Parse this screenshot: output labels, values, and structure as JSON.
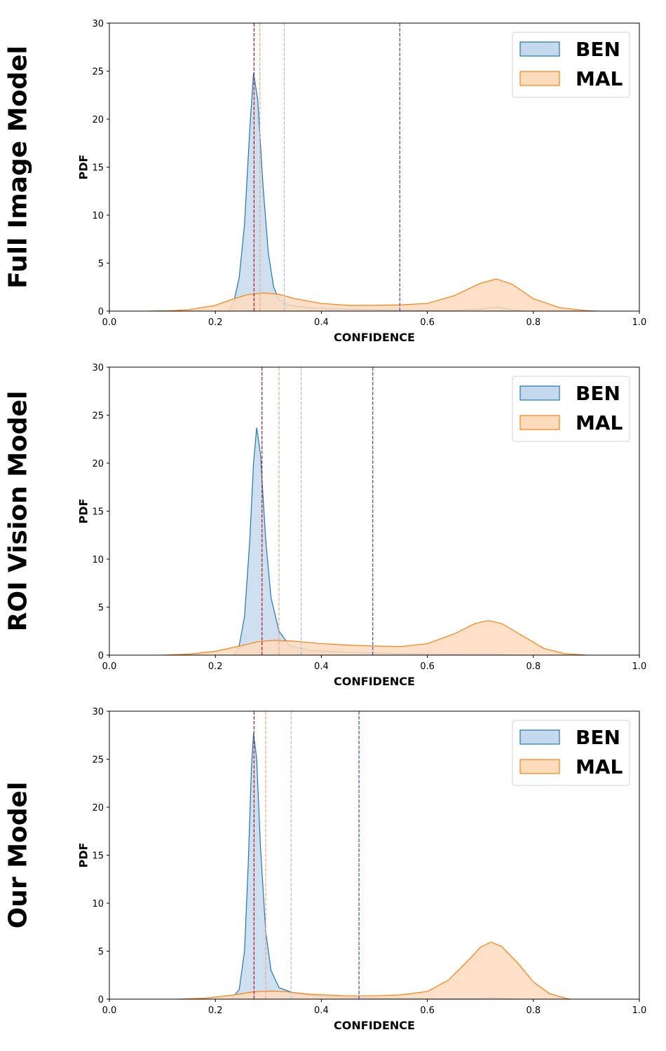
{
  "colors": {
    "ben_line": "#1f77b4",
    "ben_fill": "#c5d9ec",
    "mal_line": "#ff7f0e",
    "mal_fill": "#fddbbd",
    "vline_darkred": "#b2182b",
    "vline_lightorange": "#f4a582",
    "vline_lightblue": "#a6c1ec",
    "vline_blue": "#3a4ad0"
  },
  "chart_data": [
    {
      "type": "area",
      "row_label": "Full Image Model",
      "xlabel": "CONFIDENCE",
      "ylabel": "PDF",
      "xlim": [
        0.0,
        1.0
      ],
      "ylim": [
        0,
        30
      ],
      "xticks": [
        "0.0",
        "0.2",
        "0.4",
        "0.6",
        "0.8",
        "1.0"
      ],
      "yticks": [
        "0",
        "5",
        "10",
        "15",
        "20",
        "25",
        "30"
      ],
      "legend": {
        "placement": "top-right",
        "entries": [
          "BEN",
          "MAL"
        ]
      },
      "vlines": [
        {
          "x": 0.273,
          "color": "darkred"
        },
        {
          "x": 0.284,
          "color": "lightorange"
        },
        {
          "x": 0.33,
          "color": "lightblue"
        },
        {
          "x": 0.548,
          "color": "blue"
        }
      ],
      "series": [
        {
          "name": "BEN",
          "points": [
            [
              0.225,
              0
            ],
            [
              0.235,
              1.0
            ],
            [
              0.245,
              3.5
            ],
            [
              0.255,
              9.0
            ],
            [
              0.265,
              19.0
            ],
            [
              0.272,
              24.8
            ],
            [
              0.28,
              22.0
            ],
            [
              0.29,
              13.0
            ],
            [
              0.3,
              6.0
            ],
            [
              0.31,
              2.5
            ],
            [
              0.32,
              1.2
            ],
            [
              0.34,
              0.6
            ],
            [
              0.38,
              0.35
            ],
            [
              0.45,
              0.2
            ],
            [
              0.55,
              0.1
            ],
            [
              0.65,
              0.08
            ],
            [
              0.7,
              0.2
            ],
            [
              0.73,
              0.45
            ],
            [
              0.76,
              0.15
            ],
            [
              0.78,
              0
            ]
          ]
        },
        {
          "name": "MAL",
          "points": [
            [
              0.075,
              0
            ],
            [
              0.12,
              0.05
            ],
            [
              0.15,
              0.15
            ],
            [
              0.2,
              0.6
            ],
            [
              0.23,
              1.2
            ],
            [
              0.26,
              1.7
            ],
            [
              0.29,
              1.9
            ],
            [
              0.32,
              1.75
            ],
            [
              0.35,
              1.3
            ],
            [
              0.4,
              0.8
            ],
            [
              0.45,
              0.6
            ],
            [
              0.5,
              0.6
            ],
            [
              0.55,
              0.65
            ],
            [
              0.6,
              0.8
            ],
            [
              0.65,
              1.6
            ],
            [
              0.7,
              2.9
            ],
            [
              0.73,
              3.35
            ],
            [
              0.76,
              2.8
            ],
            [
              0.8,
              1.3
            ],
            [
              0.85,
              0.35
            ],
            [
              0.9,
              0.05
            ],
            [
              0.92,
              0
            ]
          ]
        }
      ]
    },
    {
      "type": "area",
      "row_label": "ROI Vision Model",
      "xlabel": "CONFIDENCE",
      "ylabel": "PDF",
      "xlim": [
        0.0,
        1.0
      ],
      "ylim": [
        0,
        30
      ],
      "xticks": [
        "0.0",
        "0.2",
        "0.4",
        "0.6",
        "0.8",
        "1.0"
      ],
      "yticks": [
        "0",
        "5",
        "10",
        "15",
        "20",
        "25",
        "30"
      ],
      "legend": {
        "placement": "top-right",
        "entries": [
          "BEN",
          "MAL"
        ]
      },
      "vlines": [
        {
          "x": 0.288,
          "color": "darkred"
        },
        {
          "x": 0.32,
          "color": "lightorange"
        },
        {
          "x": 0.362,
          "color": "lightblue"
        },
        {
          "x": 0.497,
          "color": "blue"
        }
      ],
      "series": [
        {
          "name": "BEN",
          "points": [
            [
              0.235,
              0
            ],
            [
              0.245,
              1.0
            ],
            [
              0.255,
              4.0
            ],
            [
              0.265,
              12.0
            ],
            [
              0.272,
              20.0
            ],
            [
              0.278,
              23.7
            ],
            [
              0.285,
              21.0
            ],
            [
              0.295,
              12.0
            ],
            [
              0.305,
              6.0
            ],
            [
              0.32,
              2.5
            ],
            [
              0.34,
              1.0
            ],
            [
              0.38,
              0.5
            ],
            [
              0.45,
              0.3
            ],
            [
              0.55,
              0.15
            ],
            [
              0.65,
              0.1
            ],
            [
              0.7,
              0.15
            ],
            [
              0.73,
              0.1
            ],
            [
              0.76,
              0
            ]
          ]
        },
        {
          "name": "MAL",
          "points": [
            [
              0.1,
              0
            ],
            [
              0.15,
              0.1
            ],
            [
              0.2,
              0.4
            ],
            [
              0.25,
              1.0
            ],
            [
              0.28,
              1.4
            ],
            [
              0.31,
              1.55
            ],
            [
              0.35,
              1.45
            ],
            [
              0.4,
              1.2
            ],
            [
              0.45,
              1.05
            ],
            [
              0.5,
              0.95
            ],
            [
              0.55,
              0.9
            ],
            [
              0.6,
              1.2
            ],
            [
              0.65,
              2.2
            ],
            [
              0.69,
              3.3
            ],
            [
              0.715,
              3.6
            ],
            [
              0.74,
              3.3
            ],
            [
              0.78,
              2.0
            ],
            [
              0.82,
              0.7
            ],
            [
              0.86,
              0.15
            ],
            [
              0.9,
              0
            ]
          ]
        }
      ]
    },
    {
      "type": "area",
      "row_label": "Our Model",
      "xlabel": "CONFIDENCE",
      "ylabel": "PDF",
      "xlim": [
        0.0,
        1.0
      ],
      "ylim": [
        0,
        30
      ],
      "xticks": [
        "0.0",
        "0.2",
        "0.4",
        "0.6",
        "0.8",
        "1.0"
      ],
      "yticks": [
        "0",
        "5",
        "10",
        "15",
        "20",
        "25",
        "30"
      ],
      "legend": {
        "placement": "top-right",
        "entries": [
          "BEN",
          "MAL"
        ]
      },
      "vlines": [
        {
          "x": 0.273,
          "color": "darkred"
        },
        {
          "x": 0.295,
          "color": "lightorange"
        },
        {
          "x": 0.343,
          "color": "lightblue"
        },
        {
          "x": 0.471,
          "color": "blue"
        }
      ],
      "series": [
        {
          "name": "BEN",
          "points": [
            [
              0.23,
              0
            ],
            [
              0.245,
              1.0
            ],
            [
              0.255,
              5.0
            ],
            [
              0.262,
              14.0
            ],
            [
              0.268,
              24.0
            ],
            [
              0.272,
              27.7
            ],
            [
              0.278,
              25.0
            ],
            [
              0.285,
              16.0
            ],
            [
              0.295,
              7.0
            ],
            [
              0.305,
              3.0
            ],
            [
              0.32,
              1.2
            ],
            [
              0.35,
              0.6
            ],
            [
              0.4,
              0.3
            ],
            [
              0.5,
              0.1
            ],
            [
              0.6,
              0.05
            ],
            [
              0.7,
              0.05
            ],
            [
              0.72,
              0.15
            ],
            [
              0.75,
              0.05
            ],
            [
              0.77,
              0
            ]
          ]
        },
        {
          "name": "MAL",
          "points": [
            [
              0.13,
              0
            ],
            [
              0.18,
              0.1
            ],
            [
              0.23,
              0.4
            ],
            [
              0.27,
              0.75
            ],
            [
              0.3,
              0.85
            ],
            [
              0.33,
              0.8
            ],
            [
              0.38,
              0.5
            ],
            [
              0.45,
              0.35
            ],
            [
              0.5,
              0.35
            ],
            [
              0.55,
              0.45
            ],
            [
              0.6,
              0.8
            ],
            [
              0.64,
              2.0
            ],
            [
              0.68,
              4.2
            ],
            [
              0.7,
              5.4
            ],
            [
              0.72,
              5.95
            ],
            [
              0.74,
              5.5
            ],
            [
              0.77,
              3.8
            ],
            [
              0.8,
              1.8
            ],
            [
              0.83,
              0.6
            ],
            [
              0.86,
              0.1
            ],
            [
              0.87,
              0
            ]
          ]
        }
      ]
    }
  ]
}
